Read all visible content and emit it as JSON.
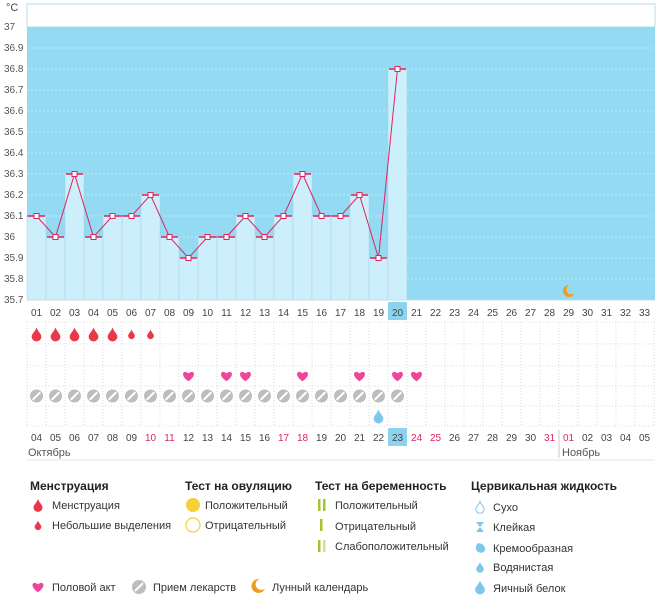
{
  "chart_data": {
    "type": "line",
    "ylabel": "°C",
    "ylim": [
      35.7,
      37.0
    ],
    "y_ticks": [
      "37",
      "36.9",
      "36.8",
      "36.7",
      "36.6",
      "36.5",
      "36.4",
      "36.3",
      "36.2",
      "36.1",
      "36",
      "35.9",
      "35.8",
      "35.7"
    ],
    "cycle_days": [
      "01",
      "02",
      "03",
      "04",
      "05",
      "06",
      "07",
      "08",
      "09",
      "10",
      "11",
      "12",
      "13",
      "14",
      "15",
      "16",
      "17",
      "18",
      "19",
      "20",
      "21",
      "22",
      "23",
      "24",
      "25",
      "26",
      "27",
      "28",
      "29",
      "30",
      "31",
      "32",
      "33"
    ],
    "current_day_index": 19,
    "series": [
      {
        "values": [
          36.1,
          36.0,
          36.3,
          36.0,
          36.1,
          36.1,
          36.2,
          36.0,
          35.9,
          36.0,
          36.0,
          36.1,
          36.0,
          36.1,
          36.3,
          36.1,
          36.1,
          36.2,
          35.9,
          36.8
        ]
      }
    ],
    "grid": true,
    "colors": {
      "band": "#93daf2",
      "bar": "#cdeefb",
      "line": "#e0245e",
      "today": "#8cd3ee"
    }
  },
  "rows": {
    "menstruation": [
      "large",
      "large",
      "large",
      "large",
      "large",
      "small",
      "small"
    ],
    "intercourse_days": [
      8,
      10,
      11,
      14,
      17,
      19,
      20
    ],
    "medication_count": 20,
    "fluid_watery_day": 18,
    "moon_day": 28
  },
  "calendar": {
    "dates": [
      "04",
      "05",
      "06",
      "07",
      "08",
      "09",
      "10",
      "11",
      "12",
      "13",
      "14",
      "15",
      "16",
      "17",
      "18",
      "19",
      "20",
      "21",
      "22",
      "23",
      "24",
      "25",
      "26",
      "27",
      "28",
      "29",
      "30",
      "31",
      "01",
      "02",
      "03",
      "04",
      "05"
    ],
    "red_dates": [
      6,
      7,
      13,
      14,
      20,
      21,
      27,
      28
    ],
    "today_index": 19,
    "month_october": "Октябрь",
    "month_november": "Ноябрь"
  },
  "legend": {
    "menstruation": {
      "title": "Менструация",
      "items": [
        "Менструация",
        "Небольшие выделения"
      ]
    },
    "ovulation": {
      "title": "Тест на овуляцию",
      "items": [
        "Положительный",
        "Отрицательный"
      ]
    },
    "pregnancy": {
      "title": "Тест на беременность",
      "items": [
        "Положительный",
        "Отрицательный",
        "Слабоположительный"
      ]
    },
    "fluid": {
      "title": "Цервикальная жидкость",
      "items": [
        "Сухо",
        "Клейкая",
        "Кремообразная",
        "Водянистая",
        "Яичный белок"
      ]
    },
    "bottom": {
      "intercourse": "Половой акт",
      "medication": "Прием лекарств",
      "moon": "Лунный календарь"
    }
  }
}
